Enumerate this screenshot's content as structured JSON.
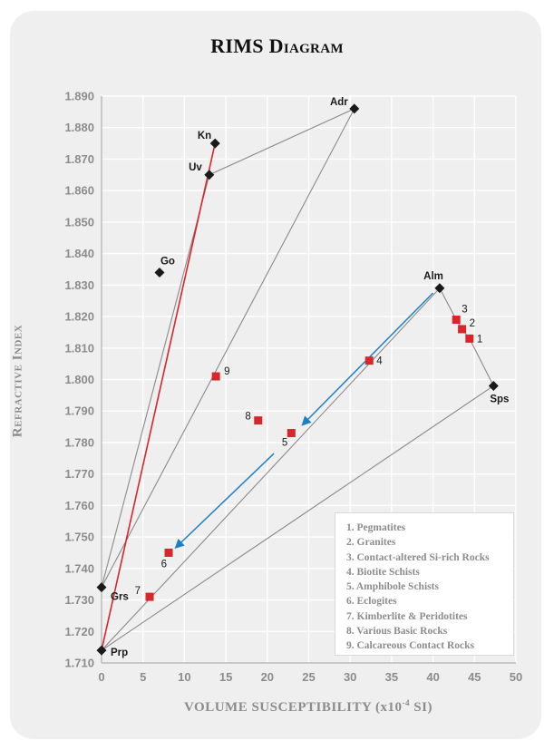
{
  "chart_data": {
    "type": "scatter",
    "title": "RIMS Diagram",
    "xlabel": "Volume Susceptibility (x10-4 SI)",
    "xlabel_main": "VOLUME SUSCEPTIBILITY (x10",
    "xlabel_sup": "-4",
    "xlabel_tail": " SI)",
    "ylabel": "Refractive Index",
    "xlim": [
      0,
      50
    ],
    "ylim": [
      1.71,
      1.89
    ],
    "x_ticks": [
      "0",
      "5",
      "10",
      "15",
      "20",
      "25",
      "30",
      "35",
      "40",
      "45",
      "50"
    ],
    "y_ticks": [
      "1.710",
      "1.720",
      "1.730",
      "1.740",
      "1.750",
      "1.760",
      "1.770",
      "1.780",
      "1.790",
      "1.800",
      "1.810",
      "1.820",
      "1.830",
      "1.840",
      "1.850",
      "1.860",
      "1.870",
      "1.880",
      "1.890"
    ],
    "grid": true,
    "end_members": [
      {
        "label": "Adr",
        "x": 30.5,
        "y": 1.886
      },
      {
        "label": "Kn",
        "x": 13.7,
        "y": 1.875
      },
      {
        "label": "Uv",
        "x": 13.0,
        "y": 1.865
      },
      {
        "label": "Go",
        "x": 7.0,
        "y": 1.834
      },
      {
        "label": "Alm",
        "x": 40.8,
        "y": 1.829
      },
      {
        "label": "Sps",
        "x": 47.3,
        "y": 1.798
      },
      {
        "label": "Grs",
        "x": 0.0,
        "y": 1.734
      },
      {
        "label": "Prp",
        "x": 0.0,
        "y": 1.714
      }
    ],
    "rock_points": [
      {
        "label": "1",
        "x": 44.4,
        "y": 1.813
      },
      {
        "label": "2",
        "x": 43.5,
        "y": 1.816
      },
      {
        "label": "3",
        "x": 42.8,
        "y": 1.819
      },
      {
        "label": "4",
        "x": 32.3,
        "y": 1.806
      },
      {
        "label": "5",
        "x": 22.9,
        "y": 1.783
      },
      {
        "label": "6",
        "x": 8.1,
        "y": 1.745
      },
      {
        "label": "7",
        "x": 5.8,
        "y": 1.731
      },
      {
        "label": "8",
        "x": 18.9,
        "y": 1.787
      },
      {
        "label": "9",
        "x": 13.8,
        "y": 1.801
      }
    ],
    "legend": [
      "1. Pegmatites",
      "2. Granites",
      "3. Contact-altered Si-rich Rocks",
      "4. Biotite Schists",
      "5. Amphibole Schists",
      "6. Eclogites",
      "7. Kimberlite & Peridotites",
      "8. Various Basic Rocks",
      "9. Calcareous Contact Rocks"
    ],
    "colors": {
      "end_member": "#1a1a1a",
      "rock_point": "#d8262a",
      "tie_line": "#8a8a8a",
      "red_line": "#d8262a",
      "arrow": "#1f7fc4",
      "grid": "#ffffff"
    }
  }
}
